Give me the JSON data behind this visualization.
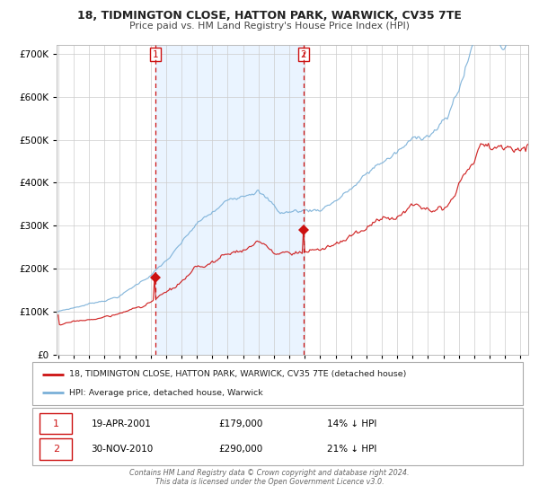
{
  "title_line1": "18, TIDMINGTON CLOSE, HATTON PARK, WARWICK, CV35 7TE",
  "title_line2": "Price paid vs. HM Land Registry's House Price Index (HPI)",
  "background_color": "#ffffff",
  "grid_color": "#cccccc",
  "hpi_color": "#7ab0d8",
  "price_color": "#cc1111",
  "shade_color": "#ddeeff",
  "vline_color": "#cc1111",
  "marker1_date_year": 2001.29,
  "marker1_value": 179000,
  "marker2_date_year": 2010.92,
  "marker2_value": 290000,
  "annotation1_date": "19-APR-2001",
  "annotation1_price": "£179,000",
  "annotation1_hpi": "14% ↓ HPI",
  "annotation2_date": "30-NOV-2010",
  "annotation2_price": "£290,000",
  "annotation2_hpi": "21% ↓ HPI",
  "legend_label1": "18, TIDMINGTON CLOSE, HATTON PARK, WARWICK, CV35 7TE (detached house)",
  "legend_label2": "HPI: Average price, detached house, Warwick",
  "footer_line1": "Contains HM Land Registry data © Crown copyright and database right 2024.",
  "footer_line2": "This data is licensed under the Open Government Licence v3.0.",
  "ylim_max": 720000,
  "ylim_min": 0,
  "xmin": 1994.9,
  "xmax": 2025.5
}
